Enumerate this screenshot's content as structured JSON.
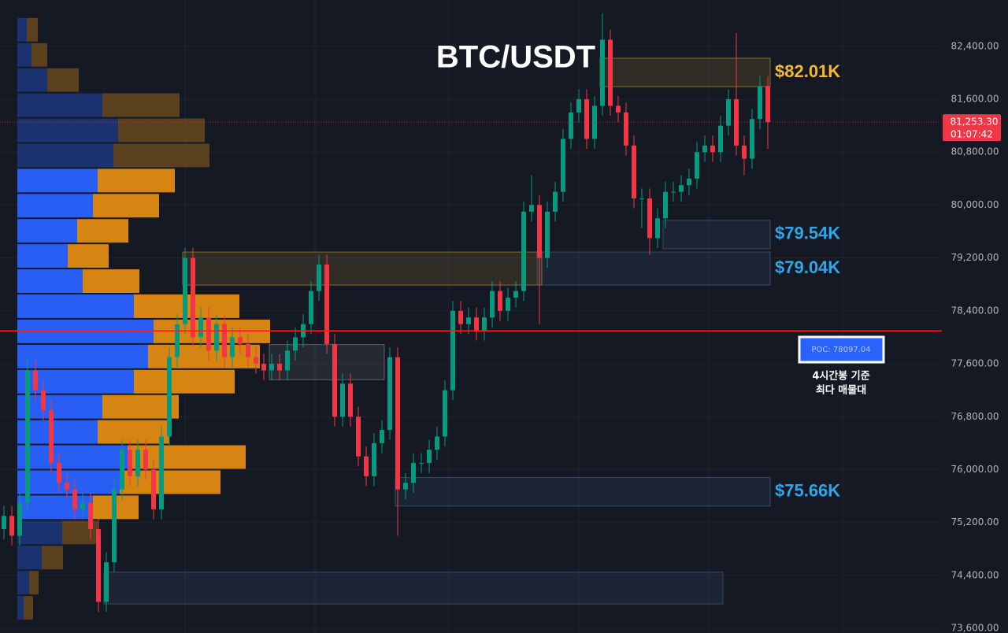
{
  "chart_data": {
    "type": "candlestick",
    "title": "BTC/USDT",
    "ylim": [
      73530,
      83100
    ],
    "yticks": [
      {
        "value": 73600,
        "label": "73,600.00"
      },
      {
        "value": 74400,
        "label": "74,400.00"
      },
      {
        "value": 75200,
        "label": "75,200.00"
      },
      {
        "value": 76000,
        "label": "76,000.00"
      },
      {
        "value": 76800,
        "label": "76,800.00"
      },
      {
        "value": 77600,
        "label": "77,600.00"
      },
      {
        "value": 78400,
        "label": "78,400.00"
      },
      {
        "value": 79200,
        "label": "79,200.00"
      },
      {
        "value": 80000,
        "label": "80,000.00"
      },
      {
        "value": 80800,
        "label": "80,800.00"
      },
      {
        "value": 81600,
        "label": "81,600.00"
      },
      {
        "value": 82400,
        "label": "82,400.00"
      }
    ],
    "grid": true,
    "up_color": "#089981",
    "down_color": "#f23645",
    "open": [
      75100,
      75300,
      75000,
      75500,
      77500,
      77200,
      76900,
      76100,
      75800,
      75700,
      75400,
      75500,
      75100,
      74000,
      74600,
      75700,
      76300,
      75900,
      76300,
      76000,
      75400,
      76500,
      77700,
      78200,
      79200,
      78000,
      78300,
      77800,
      78200,
      77700,
      78000,
      77900,
      77700,
      77600,
      77500,
      77600,
      77500,
      77800,
      78000,
      78200,
      78700,
      79100,
      77900,
      76800,
      77300,
      76800,
      76200,
      75900,
      76400,
      76600,
      77700,
      75700,
      75800,
      76100,
      76100,
      76300,
      76500,
      77200,
      78400,
      78200,
      78300,
      78100,
      78300,
      78700,
      78400,
      78600,
      78700,
      79900,
      80000,
      79200,
      79900,
      80200,
      81000,
      81400,
      81600,
      81000,
      81500,
      82500,
      81500,
      81400,
      80900,
      80100,
      80100,
      79500,
      79800,
      80200,
      80200,
      80300,
      80400,
      80800,
      80900,
      80800,
      81200,
      81600,
      80900,
      80700,
      81300,
      81800
    ],
    "high": [
      75450,
      75450,
      75650,
      77700,
      77650,
      77350,
      77050,
      76250,
      75950,
      75850,
      75650,
      75650,
      75250,
      74750,
      75850,
      76450,
      76450,
      76450,
      76450,
      76150,
      76650,
      77850,
      78350,
      79350,
      79350,
      78450,
      78450,
      78350,
      78350,
      78150,
      78150,
      78050,
      77850,
      77750,
      77750,
      77750,
      77950,
      78150,
      78350,
      78850,
      79250,
      79250,
      78050,
      77450,
      77450,
      76950,
      76350,
      76550,
      76750,
      77850,
      77850,
      75950,
      76250,
      76250,
      76450,
      76650,
      77350,
      78550,
      78550,
      78450,
      78450,
      78450,
      78850,
      78850,
      78750,
      78850,
      80050,
      80450,
      80150,
      80050,
      80350,
      81150,
      81550,
      81750,
      81750,
      81650,
      82900,
      82650,
      81650,
      81550,
      81050,
      80250,
      80250,
      79950,
      80350,
      80350,
      80450,
      80550,
      80950,
      81050,
      81050,
      81350,
      81750,
      82600,
      81050,
      81450,
      81950,
      81950
    ],
    "low": [
      74950,
      74850,
      74850,
      75350,
      77050,
      76750,
      75950,
      75650,
      75550,
      75250,
      75250,
      74950,
      73850,
      73850,
      74450,
      75550,
      75750,
      75750,
      75850,
      75250,
      75250,
      76350,
      77550,
      78050,
      77850,
      77850,
      77650,
      77650,
      77550,
      77550,
      77750,
      77550,
      77450,
      77350,
      77350,
      77350,
      77350,
      77650,
      77850,
      78050,
      78550,
      77750,
      76650,
      76650,
      76650,
      76050,
      75750,
      75750,
      76250,
      76450,
      75000,
      75550,
      75650,
      75950,
      75950,
      76150,
      76350,
      77050,
      78050,
      78050,
      77950,
      77950,
      78150,
      78250,
      78250,
      78450,
      78550,
      79750,
      78200,
      79050,
      79750,
      80050,
      80850,
      81250,
      80850,
      80850,
      81350,
      81350,
      81250,
      80750,
      79950,
      79650,
      79250,
      79350,
      79650,
      80050,
      80050,
      80150,
      80250,
      80650,
      80650,
      80650,
      81050,
      80750,
      80450,
      80550,
      81150,
      80850
    ],
    "close": [
      75300,
      75000,
      75500,
      77500,
      77200,
      76900,
      76100,
      75800,
      75700,
      75400,
      75500,
      75100,
      74000,
      74600,
      75700,
      76300,
      75900,
      76300,
      76000,
      75400,
      76500,
      77700,
      78200,
      79200,
      78000,
      78300,
      77800,
      78200,
      77700,
      78000,
      77900,
      77700,
      77600,
      77500,
      77600,
      77500,
      77800,
      78000,
      78200,
      78700,
      79100,
      77900,
      76800,
      77300,
      76800,
      76200,
      75900,
      76400,
      76600,
      77700,
      75700,
      75800,
      76100,
      76100,
      76300,
      76500,
      77200,
      78400,
      78200,
      78300,
      78100,
      78300,
      78700,
      78400,
      78600,
      78700,
      79900,
      80000,
      79200,
      79900,
      80200,
      81000,
      81400,
      81600,
      81000,
      81500,
      82500,
      81500,
      81400,
      80900,
      80100,
      80100,
      79500,
      79800,
      80200,
      80200,
      80300,
      80400,
      80800,
      80900,
      80800,
      81200,
      81600,
      80900,
      80700,
      81300,
      81800,
      81253.3
    ],
    "last_price": {
      "value": 81253.3,
      "label": "81,253.30"
    },
    "countdown": "01:07:42",
    "volume_profile": {
      "price_bins": [
        82840,
        82460,
        82080,
        81700,
        81320,
        80940,
        80560,
        80180,
        79800,
        79420,
        79040,
        78660,
        78280,
        77900,
        77520,
        77140,
        76760,
        76380,
        76000,
        75620,
        75240,
        74860,
        74480,
        74100,
        73720
      ],
      "buy": [
        12,
        18,
        38,
        108,
        128,
        122,
        102,
        96,
        76,
        64,
        83,
        148,
        173,
        166,
        148,
        108,
        102,
        140,
        130,
        96,
        57,
        31,
        15,
        8
      ],
      "sell": [
        14,
        20,
        40,
        98,
        110,
        122,
        98,
        84,
        65,
        52,
        72,
        134,
        148,
        142,
        128,
        97,
        91,
        150,
        128,
        58,
        45,
        27,
        12,
        12
      ],
      "buy_color": "#2962ff",
      "sell_color": "#e08a12",
      "value_area": [
        75240,
        80560
      ]
    },
    "zones": [
      {
        "low": 81790,
        "high": 82220,
        "start": 76,
        "end": 97,
        "color": "#c9a227",
        "label": "$82.01K",
        "label_color": "#f5b82e"
      },
      {
        "low": 79340,
        "high": 79770,
        "start": 84,
        "end": 97,
        "color": "#4a6a9a",
        "label": "$79.54K",
        "label_color": "#2ea6e8"
      },
      {
        "low": 78790,
        "high": 79290,
        "start": 23,
        "end": 68,
        "color": "#c9a227"
      },
      {
        "low": 78790,
        "high": 79290,
        "start": 68,
        "end": 97,
        "color": "#4a6a9a",
        "label": "$79.04K",
        "label_color": "#2ea6e8"
      },
      {
        "low": 77360,
        "high": 77890,
        "start": 34,
        "end": 48,
        "color": "#8a8d96"
      },
      {
        "low": 75450,
        "high": 75880,
        "start": 50,
        "end": 97,
        "color": "#4a6a9a",
        "label": "$75.66K",
        "label_color": "#2ea6e8"
      },
      {
        "low": 73970,
        "high": 74450,
        "start": 13,
        "end": 91,
        "color": "#4a6a9a"
      }
    ],
    "poc": {
      "value": 78097.04,
      "label": "POC: 78097.04",
      "color": "#ff1a1a"
    },
    "annotation": [
      "4시간봉 기준",
      "최다 매물대"
    ]
  }
}
